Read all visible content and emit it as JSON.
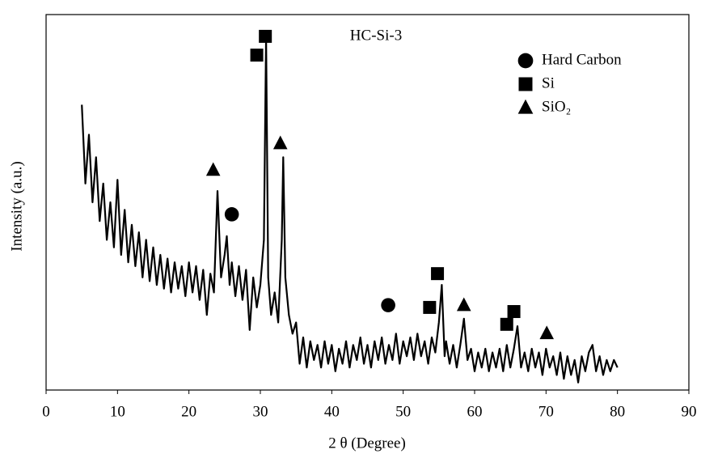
{
  "chart_data": {
    "type": "line",
    "title": "HC-Si-3",
    "x_label": "2 θ (Degree)",
    "y_label": "Intensity (a.u.)",
    "xlim": [
      0,
      90
    ],
    "xticks": [
      0,
      10,
      20,
      30,
      40,
      50,
      60,
      70,
      80,
      90
    ],
    "ylim": [
      0,
      100
    ],
    "x": [
      5,
      5.5,
      6,
      6.5,
      7,
      7.5,
      8,
      8.5,
      9,
      9.5,
      10,
      10.5,
      11,
      11.5,
      12,
      12.5,
      13,
      13.5,
      14,
      14.5,
      15,
      15.5,
      16,
      16.5,
      17,
      17.5,
      18,
      18.5,
      19,
      19.5,
      20,
      20.5,
      21,
      21.5,
      22,
      22.5,
      23,
      23.5,
      24,
      24.5,
      25,
      25.3,
      25.7,
      26,
      26.5,
      27,
      27.5,
      28,
      28.5,
      29,
      29.5,
      30,
      30.5,
      30.8,
      31.1,
      31.5,
      32,
      32.5,
      33,
      33.2,
      33.5,
      34,
      34.5,
      35,
      35.5,
      36,
      36.5,
      37,
      37.5,
      38,
      38.5,
      39,
      39.5,
      40,
      40.5,
      41,
      41.5,
      42,
      42.5,
      43,
      43.5,
      44,
      44.5,
      45,
      45.5,
      46,
      46.5,
      47,
      47.5,
      48,
      48.5,
      49,
      49.5,
      50,
      50.5,
      51,
      51.5,
      52,
      52.5,
      53,
      53.5,
      54,
      54.5,
      55,
      55.4,
      55.8,
      56,
      56.5,
      57,
      57.5,
      58,
      58.5,
      59,
      59.5,
      60,
      60.5,
      61,
      61.5,
      62,
      62.5,
      63,
      63.5,
      64,
      64.5,
      65,
      65.5,
      66,
      66.5,
      67,
      67.5,
      68,
      68.5,
      69,
      69.5,
      70,
      70.5,
      71,
      71.5,
      72,
      72.5,
      73,
      73.5,
      74,
      74.5,
      75,
      75.5,
      76,
      76.5,
      77,
      77.5,
      78,
      78.5,
      79,
      79.5,
      80
    ],
    "series": [
      {
        "color": "#000000",
        "values": [
          76,
          55,
          68,
          50,
          62,
          45,
          55,
          40,
          50,
          38,
          56,
          36,
          48,
          34,
          44,
          33,
          42,
          30,
          40,
          29,
          38,
          28,
          36,
          27,
          35,
          26,
          34,
          27,
          33,
          25,
          34,
          26,
          33,
          24,
          32,
          20,
          31,
          26,
          53,
          30,
          36,
          41,
          28,
          34,
          25,
          33,
          24,
          32,
          16,
          30,
          22,
          28,
          40,
          94,
          30,
          20,
          26,
          18,
          40,
          62,
          30,
          20,
          15,
          18,
          7,
          14,
          6,
          13,
          8,
          12,
          6,
          13,
          7,
          12,
          5,
          11,
          7,
          13,
          6,
          12,
          8,
          14,
          7,
          12,
          6,
          13,
          8,
          14,
          7,
          12,
          8,
          15,
          7,
          13,
          9,
          14,
          8,
          15,
          9,
          13,
          7,
          14,
          10,
          18,
          28,
          9,
          13,
          7,
          12,
          6,
          12,
          19,
          8,
          11,
          5,
          10,
          6,
          11,
          5,
          10,
          6,
          11,
          5,
          12,
          6,
          11,
          17,
          6,
          10,
          5,
          11,
          6,
          10,
          4,
          11,
          6,
          9,
          4,
          10,
          3,
          9,
          4,
          8,
          2,
          9,
          5,
          10,
          12,
          5,
          9,
          4,
          8,
          5,
          8,
          6
        ]
      }
    ],
    "legend": [
      {
        "label": "Hard Carbon",
        "symbol": "circle"
      },
      {
        "label": "Si",
        "symbol": "square"
      },
      {
        "label": "SiO₂",
        "symbol": "triangle"
      }
    ],
    "markers": [
      {
        "symbol": "square",
        "x": 29.5,
        "y": 89.2
      },
      {
        "symbol": "square",
        "x": 30.7,
        "y": 94.2
      },
      {
        "symbol": "square",
        "x": 54.8,
        "y": 31.0
      },
      {
        "symbol": "square",
        "x": 53.7,
        "y": 22.0
      },
      {
        "symbol": "square",
        "x": 65.5,
        "y": 20.9
      },
      {
        "symbol": "square",
        "x": 64.5,
        "y": 17.5
      },
      {
        "symbol": "circle",
        "x": 26.0,
        "y": 46.8
      },
      {
        "symbol": "circle",
        "x": 47.9,
        "y": 22.6
      },
      {
        "symbol": "triangle",
        "x": 23.4,
        "y": 58.6
      },
      {
        "symbol": "triangle",
        "x": 32.8,
        "y": 65.7
      },
      {
        "symbol": "triangle",
        "x": 58.5,
        "y": 22.6
      },
      {
        "symbol": "triangle",
        "x": 70.1,
        "y": 15.1
      }
    ]
  }
}
